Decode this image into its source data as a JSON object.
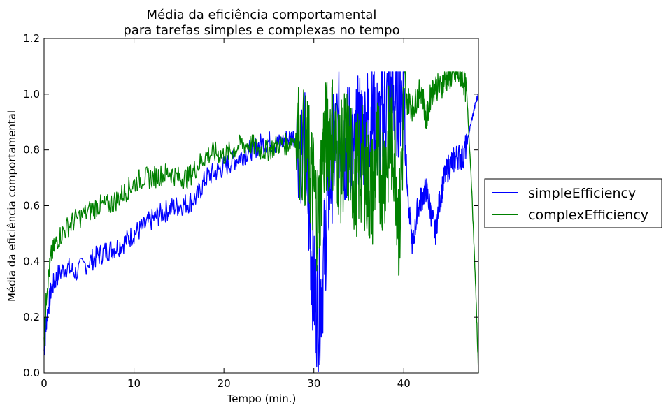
{
  "chart_data": {
    "type": "line",
    "title_line1": "Média da eficiência comportamental",
    "title_line2": "para tarefas simples e complexas no tempo",
    "xlabel": "Tempo (min.)",
    "ylabel": "Média da eficiência comportamental",
    "xlim": [
      0,
      48.3
    ],
    "ylim": [
      0,
      1.2
    ],
    "xticks": [
      0,
      10,
      20,
      30,
      40
    ],
    "yticks": [
      0.0,
      0.2,
      0.4,
      0.6,
      0.8,
      1.0,
      1.2
    ],
    "ytick_labels": [
      "0.0",
      "0.2",
      "0.4",
      "0.6",
      "0.8",
      "1.0",
      "1.2"
    ],
    "grid": false,
    "legend_position": "outside-right",
    "series": [
      {
        "name": "simpleEfficiency",
        "color": "#0000ff",
        "x": [
          0,
          0.3,
          0.8,
          1.5,
          2.5,
          3.5,
          5,
          6,
          7,
          8,
          9,
          10,
          11,
          12,
          13,
          14,
          15,
          16,
          17,
          18,
          19,
          20,
          21,
          22,
          23,
          24,
          25,
          26,
          27,
          28,
          29,
          29.5,
          30,
          30.5,
          31,
          31.5,
          32,
          32.5,
          33,
          33.5,
          34,
          34.5,
          35,
          35.5,
          36,
          36.5,
          37,
          37.5,
          38,
          38.5,
          39,
          39.5,
          40,
          40.5,
          41,
          41.5,
          42,
          42.5,
          43,
          43.5,
          44,
          44.5,
          45,
          45.5,
          46,
          46.5,
          47,
          47.5,
          48,
          48.3
        ],
        "y": [
          0.08,
          0.2,
          0.3,
          0.35,
          0.38,
          0.36,
          0.4,
          0.42,
          0.44,
          0.45,
          0.47,
          0.5,
          0.52,
          0.55,
          0.57,
          0.59,
          0.6,
          0.61,
          0.63,
          0.7,
          0.72,
          0.74,
          0.76,
          0.78,
          0.8,
          0.82,
          0.83,
          0.82,
          0.84,
          0.85,
          0.8,
          0.55,
          0.3,
          0.2,
          0.35,
          0.6,
          0.75,
          0.85,
          0.88,
          0.8,
          0.85,
          0.75,
          0.88,
          0.85,
          0.9,
          0.92,
          0.85,
          0.9,
          0.95,
          0.97,
          0.98,
          0.99,
          1.0,
          0.6,
          0.45,
          0.58,
          0.63,
          0.66,
          0.58,
          0.5,
          0.62,
          0.7,
          0.74,
          0.76,
          0.78,
          0.77,
          0.82,
          0.9,
          0.97,
          1.0
        ]
      },
      {
        "name": "complexEfficiency",
        "color": "#008000",
        "x": [
          0,
          0.3,
          0.8,
          1.5,
          2.5,
          3.5,
          5,
          6,
          7,
          8,
          9,
          10,
          11,
          12,
          13,
          14,
          15,
          16,
          17,
          18,
          19,
          20,
          21,
          22,
          23,
          24,
          25,
          26,
          27,
          28,
          29,
          29.5,
          30,
          30.5,
          31,
          31.5,
          32,
          32.5,
          33,
          33.5,
          34,
          34.5,
          35,
          35.5,
          36,
          36.5,
          37,
          37.5,
          38,
          38.5,
          39,
          39.5,
          40,
          40.5,
          41,
          41.5,
          42,
          42.5,
          43,
          43.5,
          44,
          44.5,
          45,
          45.5,
          46,
          46.5,
          47,
          47.5,
          48,
          48.3
        ],
        "y": [
          0.12,
          0.3,
          0.42,
          0.48,
          0.52,
          0.55,
          0.58,
          0.6,
          0.6,
          0.62,
          0.65,
          0.68,
          0.7,
          0.7,
          0.71,
          0.72,
          0.7,
          0.7,
          0.74,
          0.78,
          0.79,
          0.78,
          0.8,
          0.82,
          0.82,
          0.8,
          0.8,
          0.82,
          0.82,
          0.85,
          0.8,
          0.75,
          0.65,
          0.55,
          0.8,
          0.85,
          0.88,
          0.8,
          0.75,
          0.82,
          0.78,
          0.7,
          0.72,
          0.75,
          0.68,
          0.65,
          0.78,
          0.72,
          0.75,
          0.85,
          0.8,
          0.5,
          0.95,
          0.98,
          0.95,
          0.99,
          1.02,
          0.9,
          1.0,
          1.03,
          1.02,
          1.05,
          1.06,
          1.07,
          1.07,
          1.07,
          1.0,
          0.7,
          0.3,
          0.0
        ]
      }
    ]
  }
}
